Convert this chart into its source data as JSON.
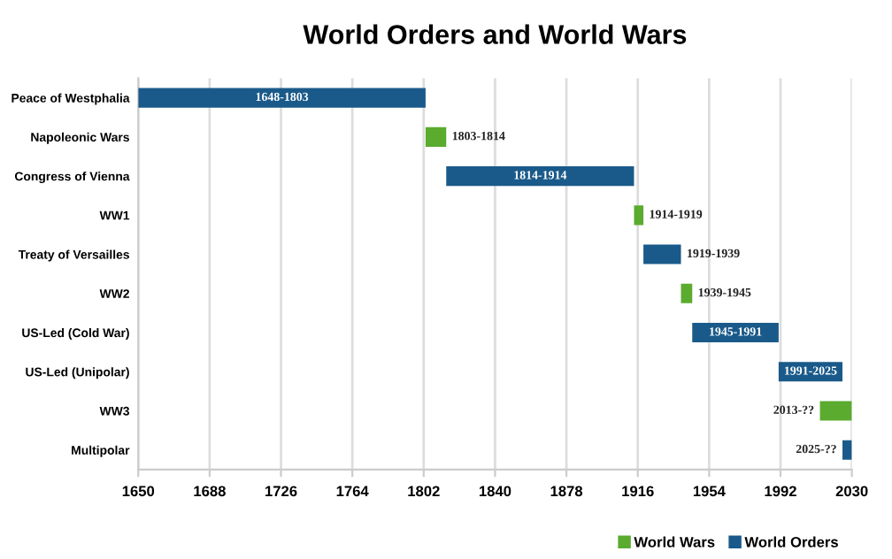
{
  "chart_data": {
    "type": "bar",
    "orientation": "horizontal",
    "title": "World Orders and World Wars",
    "categories": [
      "Peace of Westphalia",
      "Napoleonic Wars",
      "Congress of Vienna",
      "WW1",
      "Treaty of Versailles",
      "WW2",
      "US-Led (Cold War)",
      "US-Led (Unipolar)",
      "WW3",
      "Multipolar"
    ],
    "series": [
      {
        "name": "World Wars",
        "color": "#5aab2e",
        "base": [
          null,
          1803,
          null,
          1914,
          null,
          1939,
          null,
          null,
          2013,
          null
        ],
        "values": [
          null,
          11,
          null,
          5,
          null,
          6,
          null,
          null,
          17,
          null
        ]
      },
      {
        "name": "World Orders",
        "color": "#1a5a8a",
        "base": [
          1650,
          null,
          1814,
          null,
          1919,
          null,
          1945,
          1991,
          null,
          2025
        ],
        "values": [
          153,
          null,
          100,
          null,
          20,
          null,
          46,
          34,
          null,
          5
        ]
      }
    ],
    "annotations": [
      {
        "text": "1648-1803",
        "x": 1726.5,
        "y": "Peace of Westphalia"
      },
      {
        "text": "1803-1814",
        "x": 1814,
        "y": "Napoleonic Wars"
      },
      {
        "text": "1814-1914",
        "x": 1864,
        "y": "Congress of Vienna"
      },
      {
        "text": "1914-1919",
        "x": 1919,
        "y": "WW1"
      },
      {
        "text": "1919-1939",
        "x": 1939,
        "y": "Treaty of Versailles"
      },
      {
        "text": "1939-1945",
        "x": 1945,
        "y": "WW2"
      },
      {
        "text": "1945-1991",
        "x": 1968,
        "y": "US-Led (Cold War)"
      },
      {
        "text": "1991-2025",
        "x": 2008,
        "y": "US-Led (Unipolar)"
      },
      {
        "text": "2013-??",
        "x": 2013,
        "y": "WW3"
      },
      {
        "text": "2025-??",
        "x": 2025,
        "y": "Multipolar"
      }
    ],
    "xlim": [
      1650,
      2030
    ],
    "xticks": [
      1650,
      1688,
      1726,
      1764,
      1802,
      1840,
      1878,
      1916,
      1954,
      1992,
      2030
    ],
    "grid": "x",
    "legend": "bottom"
  }
}
